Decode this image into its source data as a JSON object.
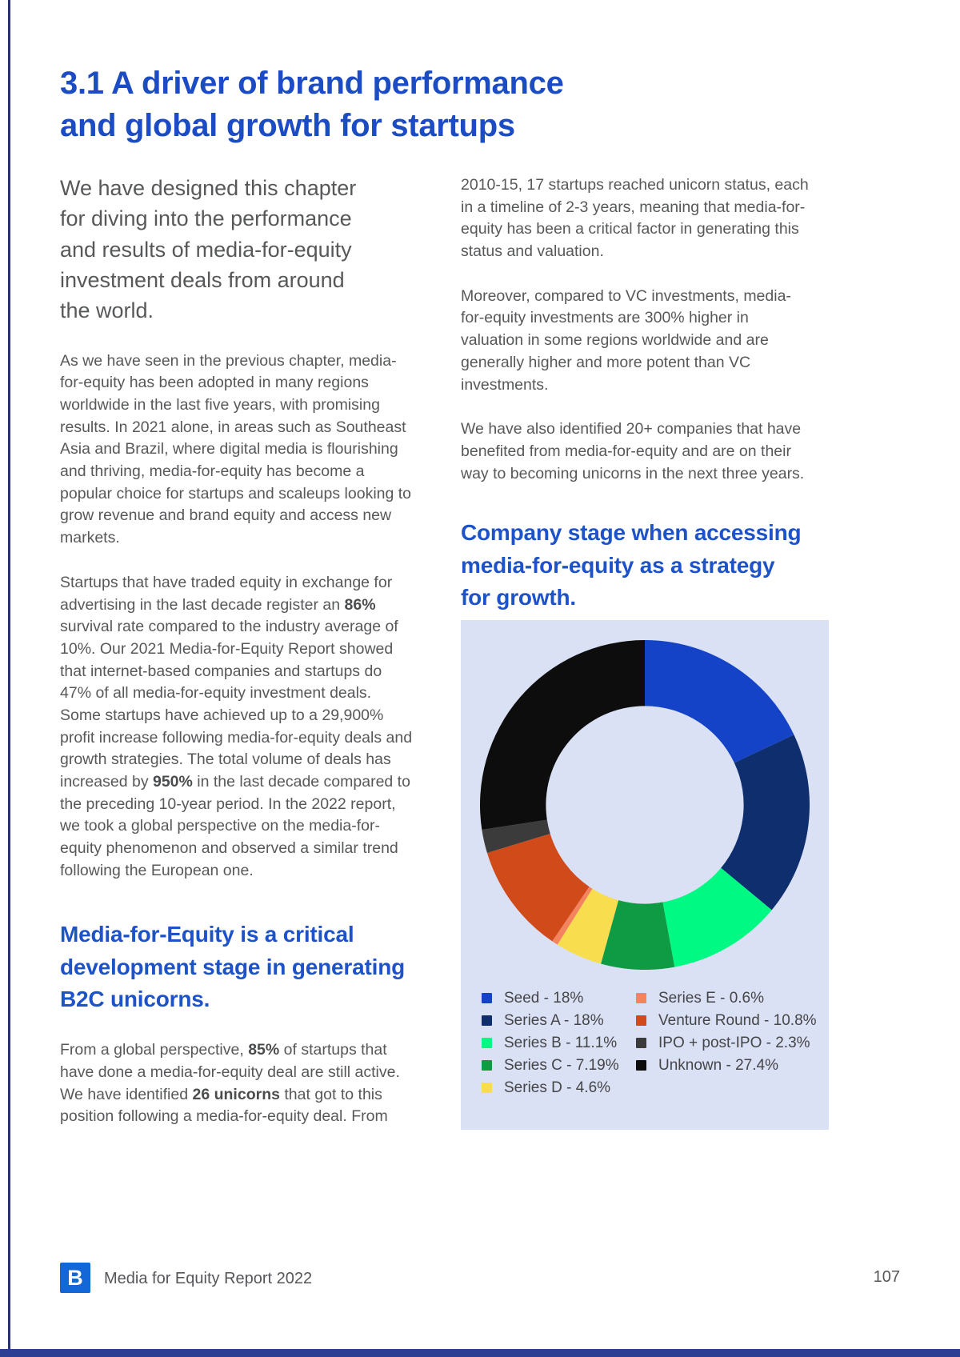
{
  "page": {
    "title": "3.1 A driver of brand performance\nand global growth for startups",
    "page_number": "107",
    "footer": {
      "brand": "Media for Equity Report 2022",
      "logo_letter": "B"
    }
  },
  "left_column": {
    "intro": "We have designed this chapter\nfor diving into the performance\nand results of media-for-equity\ninvestment deals from around\nthe world.",
    "p1": "As we have seen in the previous chapter, media-for-equity has been adopted in many regions worldwide in the last five years, with promising results. In 2021 alone, in areas such as Southeast Asia and Brazil, where digital media is flourishing and thriving, media-for-equity has become a popular choice for startups and scaleups looking to grow revenue and brand equity and access new markets.",
    "p2_runs": [
      {
        "t": "Startups that have traded equity in exchange for advertising in the last decade register an ",
        "b": false
      },
      {
        "t": "86%",
        "b": true
      },
      {
        "t": " survival rate compared to the industry average of 10%. Our 2021 Media-for-Equity Report showed that internet-based companies and startups do 47% of all media-for-equity investment deals. Some startups have achieved up to a 29,900% profit increase following media-for-equity deals and growth strategies. The total volume of deals has increased by ",
        "b": false
      },
      {
        "t": "950%",
        "b": true
      },
      {
        "t": " in the last decade compared to the preceding 10-year period. In the 2022 report, we took a global perspective on the media-for-equity phenomenon and observed a similar trend following the European one.",
        "b": false
      }
    ],
    "subheading": "Media-for-Equity is a critical\ndevelopment stage in generating\nB2C unicorns.",
    "p3_runs": [
      {
        "t": "From a global perspective, ",
        "b": false
      },
      {
        "t": "85%",
        "b": true
      },
      {
        "t": " of startups that have done a media-for-equity deal are still active. We have identified ",
        "b": false
      },
      {
        "t": "26 unicorns",
        "b": true
      },
      {
        "t": " that got to this position following a media-for-equity deal. From",
        "b": false
      }
    ]
  },
  "right_column": {
    "p1": "2010-15, 17 startups reached unicorn status, each in a timeline of 2-3 years, meaning that media-for-equity has been a critical factor in generating this status and valuation.",
    "p2": "Moreover, compared to VC investments, media-for-equity investments are 300% higher in valuation in some regions worldwide and are generally higher and more potent than VC investments.",
    "p3": "We have also identified 20+ companies that have benefited from media-for-equity and are on their way to becoming unicorns in the next three years.",
    "chart_heading": "Company stage when accessing\nmedia-for-equity as a strategy\nfor growth."
  },
  "chart_data": {
    "type": "pie",
    "subtype": "donut",
    "title": "Company stage when accessing media-for-equity as a strategy for growth.",
    "start_angle_deg": 0,
    "direction": "clockwise",
    "inner_radius_ratio": 0.6,
    "background": "#dbe1f5",
    "legend_position": "bottom",
    "legend_columns": 2,
    "legend_split": 5,
    "slices": [
      {
        "label": "Seed",
        "value": 18,
        "display": "Seed - 18%",
        "color": "#1443c8"
      },
      {
        "label": "Series A",
        "value": 18,
        "display": "Series A - 18%",
        "color": "#0f2e6e"
      },
      {
        "label": "Series B",
        "value": 11.1,
        "display": "Series B - 11.1%",
        "color": "#00f982"
      },
      {
        "label": "Series C",
        "value": 7.19,
        "display": "Series C - 7.19%",
        "color": "#0f9a44"
      },
      {
        "label": "Series D",
        "value": 4.6,
        "display": "Series D - 4.6%",
        "color": "#f8de4e"
      },
      {
        "label": "Series E",
        "value": 0.6,
        "display": "Series E - 0.6%",
        "color": "#f4835f"
      },
      {
        "label": "Venture Round",
        "value": 10.8,
        "display": "Venture Round - 10.8%",
        "color": "#d04a1a"
      },
      {
        "label": "IPO + post-IPO",
        "value": 2.3,
        "display": "IPO + post-IPO - 2.3%",
        "color": "#3b3b3b"
      },
      {
        "label": "Unknown",
        "value": 27.4,
        "display": "Unknown - 27.4%",
        "color": "#0d0d0d"
      }
    ]
  },
  "colors": {
    "accent_blue": "#1c4cc4",
    "subhead_blue": "#1d52c8",
    "body_text": "#57585a",
    "panel_background": "#dbe1f5",
    "left_rule": "#27336f",
    "bottom_rule": "#2c3f92",
    "footer_logo_blue": "#1467d6"
  }
}
